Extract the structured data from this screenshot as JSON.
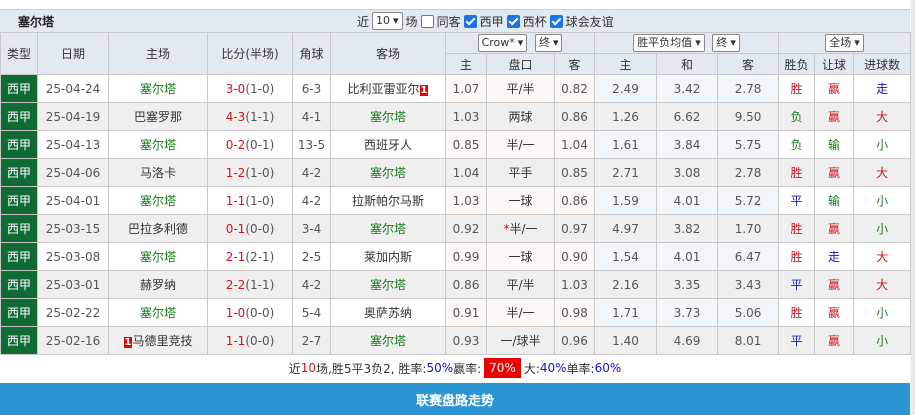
{
  "title": "塞尔塔",
  "filters": {
    "prefix": "近",
    "count": "10",
    "suffix": "场",
    "same_venue": "同客",
    "same_venue_checked": false,
    "leagues": [
      {
        "label": "西甲",
        "checked": true
      },
      {
        "label": "西杯",
        "checked": true
      },
      {
        "label": "球会友谊",
        "checked": true
      }
    ]
  },
  "selectors": {
    "company": "Crow*",
    "handicap_stage": "终",
    "odds_type": "胜平负均值",
    "odds_stage": "终",
    "period": "全场"
  },
  "headers": {
    "type": "类型",
    "date": "日期",
    "home": "主场",
    "score": "比分(半场)",
    "corners": "角球",
    "away": "客场",
    "h_home": "主",
    "h_line": "盘口",
    "h_away": "客",
    "o_home": "主",
    "o_draw": "和",
    "o_away": "客",
    "result": "胜负",
    "handicap": "让球",
    "goals": "进球数"
  },
  "rows": [
    {
      "type": "西甲",
      "date": "25-04-24",
      "home": "塞尔塔",
      "home_hl": true,
      "home_badge": "",
      "score": "3-0",
      "half": "(1-0)",
      "corners": "6-3",
      "away": "比利亚雷亚尔",
      "away_hl": false,
      "away_badge": "1",
      "h_home": "1.07",
      "h_line": "平/半",
      "h_away": "0.82",
      "o_home": "2.49",
      "o_draw": "3.42",
      "o_away": "2.78",
      "result": "胜",
      "handicap": "赢",
      "goals": "走"
    },
    {
      "type": "西甲",
      "date": "25-04-19",
      "home": "巴塞罗那",
      "home_hl": false,
      "home_badge": "",
      "score": "4-3",
      "half": "(1-1)",
      "corners": "4-1",
      "away": "塞尔塔",
      "away_hl": true,
      "away_badge": "",
      "h_home": "1.03",
      "h_line": "两球",
      "h_away": "0.86",
      "o_home": "1.26",
      "o_draw": "6.62",
      "o_away": "9.50",
      "result": "负",
      "handicap": "赢",
      "goals": "大"
    },
    {
      "type": "西甲",
      "date": "25-04-13",
      "home": "塞尔塔",
      "home_hl": true,
      "home_badge": "",
      "score": "0-2",
      "half": "(0-1)",
      "corners": "13-5",
      "away": "西班牙人",
      "away_hl": false,
      "away_badge": "",
      "h_home": "0.85",
      "h_line": "半/一",
      "h_away": "1.04",
      "o_home": "1.61",
      "o_draw": "3.84",
      "o_away": "5.75",
      "result": "负",
      "handicap": "输",
      "goals": "小"
    },
    {
      "type": "西甲",
      "date": "25-04-06",
      "home": "马洛卡",
      "home_hl": false,
      "home_badge": "",
      "score": "1-2",
      "half": "(1-0)",
      "corners": "4-2",
      "away": "塞尔塔",
      "away_hl": true,
      "away_badge": "",
      "h_home": "1.04",
      "h_line": "平手",
      "h_away": "0.85",
      "o_home": "2.71",
      "o_draw": "3.08",
      "o_away": "2.78",
      "result": "胜",
      "handicap": "赢",
      "goals": "大"
    },
    {
      "type": "西甲",
      "date": "25-04-01",
      "home": "塞尔塔",
      "home_hl": true,
      "home_badge": "",
      "score": "1-1",
      "half": "(1-0)",
      "corners": "4-2",
      "away": "拉斯帕尔马斯",
      "away_hl": false,
      "away_badge": "",
      "h_home": "1.03",
      "h_line": "一球",
      "h_away": "0.86",
      "o_home": "1.59",
      "o_draw": "4.01",
      "o_away": "5.72",
      "result": "平",
      "handicap": "输",
      "goals": "小"
    },
    {
      "type": "西甲",
      "date": "25-03-15",
      "home": "巴拉多利德",
      "home_hl": false,
      "home_badge": "",
      "score": "0-1",
      "half": "(0-0)",
      "corners": "3-4",
      "away": "塞尔塔",
      "away_hl": true,
      "away_badge": "",
      "h_home": "0.92",
      "h_line_mark": "*",
      "h_line": "半/一",
      "h_away": "0.97",
      "o_home": "4.97",
      "o_draw": "3.82",
      "o_away": "1.70",
      "result": "胜",
      "handicap": "赢",
      "goals": "小"
    },
    {
      "type": "西甲",
      "date": "25-03-08",
      "home": "塞尔塔",
      "home_hl": true,
      "home_badge": "",
      "score": "2-1",
      "half": "(2-1)",
      "corners": "2-5",
      "away": "莱加内斯",
      "away_hl": false,
      "away_badge": "",
      "h_home": "0.99",
      "h_line": "一球",
      "h_away": "0.90",
      "o_home": "1.54",
      "o_draw": "4.01",
      "o_away": "6.47",
      "result": "胜",
      "handicap": "走",
      "goals": "大"
    },
    {
      "type": "西甲",
      "date": "25-03-01",
      "home": "赫罗纳",
      "home_hl": false,
      "home_badge": "",
      "score": "2-2",
      "half": "(1-1)",
      "corners": "4-2",
      "away": "塞尔塔",
      "away_hl": true,
      "away_badge": "",
      "h_home": "0.86",
      "h_line": "平/半",
      "h_away": "1.03",
      "o_home": "2.16",
      "o_draw": "3.35",
      "o_away": "3.43",
      "result": "平",
      "handicap": "赢",
      "goals": "大"
    },
    {
      "type": "西甲",
      "date": "25-02-22",
      "home": "塞尔塔",
      "home_hl": true,
      "home_badge": "",
      "score": "1-0",
      "half": "(0-0)",
      "corners": "5-4",
      "away": "奥萨苏纳",
      "away_hl": false,
      "away_badge": "",
      "h_home": "0.91",
      "h_line": "半/一",
      "h_away": "0.98",
      "o_home": "1.71",
      "o_draw": "3.73",
      "o_away": "5.06",
      "result": "胜",
      "handicap": "赢",
      "goals": "小"
    },
    {
      "type": "西甲",
      "date": "25-02-16",
      "home": "马德里竞技",
      "home_hl": false,
      "home_badge": "1",
      "score": "1-1",
      "half": "(0-0)",
      "corners": "2-7",
      "away": "塞尔塔",
      "away_hl": true,
      "away_badge": "",
      "h_home": "0.93",
      "h_line": "一/球半",
      "h_away": "0.96",
      "o_home": "1.40",
      "o_draw": "4.69",
      "o_away": "8.01",
      "result": "平",
      "handicap": "赢",
      "goals": "小"
    }
  ],
  "summary": {
    "p1": "近",
    "n": "10",
    "p2": "场,胜5平3负2, 胜率:",
    "win_rate": "50%",
    "p3": " 赢率:",
    "cover_rate": "70%",
    "p4": "大:",
    "over_rate": "40%",
    "p5": " 单率:",
    "odd_rate": "60%"
  },
  "footer_button": "联赛盘路走势",
  "colors": {
    "win": "#d0141e",
    "draw": "#1414c8",
    "loss": "#1a7a1a",
    "league": "#0f6b35",
    "bar": "#2b95d3"
  }
}
